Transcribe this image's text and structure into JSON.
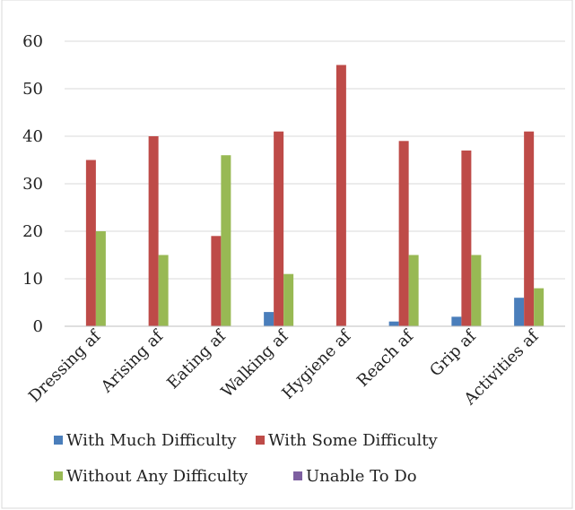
{
  "chart_data": {
    "type": "bar",
    "categories": [
      "Dressing af",
      "Arising af",
      "Eating af",
      "Walking af",
      "Hygiene af",
      "Reach af",
      "Grip af",
      "Activities af"
    ],
    "series": [
      {
        "name": "With Much Difficulty",
        "color": "#4a7ebb",
        "values": [
          0,
          0,
          0,
          3,
          0,
          1,
          2,
          6
        ]
      },
      {
        "name": "With Some Difficulty",
        "color": "#be4b48",
        "values": [
          35,
          40,
          19,
          41,
          55,
          39,
          37,
          41
        ]
      },
      {
        "name": "Without Any Difficulty",
        "color": "#98b954",
        "values": [
          20,
          15,
          36,
          11,
          0,
          15,
          15,
          8
        ]
      },
      {
        "name": "Unable To Do",
        "color": "#7d5fa0",
        "values": [
          0,
          0,
          0,
          0,
          0,
          0,
          0,
          0
        ]
      }
    ],
    "yticks": [
      0,
      10,
      20,
      30,
      40,
      50,
      60
    ],
    "ylim": [
      0,
      60
    ],
    "grid": true,
    "legend_position": "bottom"
  }
}
